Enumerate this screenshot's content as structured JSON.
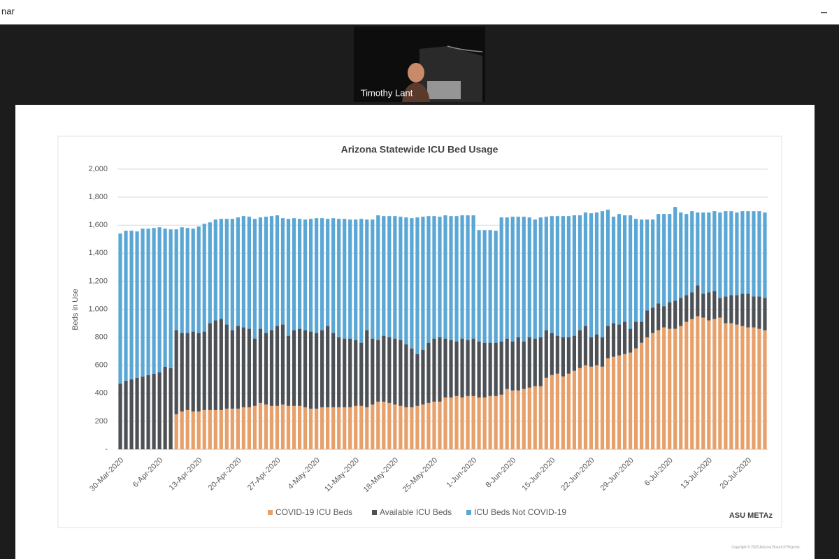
{
  "window": {
    "title": "nar"
  },
  "video": {
    "participant": "Timothy Lant"
  },
  "slide": {
    "copyright": "Copyright © 2020 Arizona Board of Regents."
  },
  "chart_data": {
    "type": "stacked_bar",
    "title": "Arizona Statewide ICU Bed Usage",
    "y_label": "Beds in Use",
    "source": "ASU METAz",
    "grid": true,
    "legend": "bottom",
    "ylim": [
      0,
      2000
    ],
    "yticks": [
      {
        "value": 0,
        "label": "-"
      },
      200,
      400,
      600,
      800,
      {
        "value": 1000,
        "label": "1,000"
      },
      {
        "value": 1200,
        "label": "1,200"
      },
      {
        "value": 1400,
        "label": "1,400"
      },
      {
        "value": 1600,
        "label": "1,600"
      },
      {
        "value": 1800,
        "label": "1,800"
      },
      {
        "value": 2000,
        "label": "2,000"
      }
    ],
    "categories": [
      "30-Mar-2020",
      null,
      null,
      null,
      null,
      null,
      null,
      "6-Apr-2020",
      null,
      null,
      null,
      null,
      null,
      null,
      "13-Apr-2020",
      null,
      null,
      null,
      null,
      null,
      null,
      "20-Apr-2020",
      null,
      null,
      null,
      null,
      null,
      null,
      "27-Apr-2020",
      null,
      null,
      null,
      null,
      null,
      null,
      "4-May-2020",
      null,
      null,
      null,
      null,
      null,
      null,
      "11-May-2020",
      null,
      null,
      null,
      null,
      null,
      null,
      "18-May-2020",
      null,
      null,
      null,
      null,
      null,
      null,
      "25-May-2020",
      null,
      null,
      null,
      null,
      null,
      null,
      "1-Jun-2020",
      null,
      null,
      null,
      null,
      null,
      null,
      "8-Jun-2020",
      null,
      null,
      null,
      null,
      null,
      null,
      "15-Jun-2020",
      null,
      null,
      null,
      null,
      null,
      null,
      "22-Jun-2020",
      null,
      null,
      null,
      null,
      null,
      null,
      "29-Jun-2020",
      null,
      null,
      null,
      null,
      null,
      null,
      "6-Jul-2020",
      null,
      null,
      null,
      null,
      null,
      null,
      "13-Jul-2020",
      null,
      null,
      null,
      null,
      null,
      null,
      "20-Jul-2020",
      null,
      null,
      null
    ],
    "series": [
      {
        "name": "COVID-19 ICU Beds",
        "color": "#e8a06a",
        "values": [
          0,
          0,
          0,
          0,
          0,
          0,
          0,
          0,
          0,
          0,
          250,
          270,
          280,
          270,
          270,
          280,
          280,
          280,
          280,
          290,
          290,
          290,
          300,
          300,
          310,
          330,
          320,
          310,
          310,
          320,
          310,
          310,
          310,
          300,
          290,
          290,
          300,
          300,
          300,
          300,
          300,
          300,
          310,
          310,
          300,
          320,
          340,
          340,
          330,
          320,
          310,
          300,
          300,
          310,
          320,
          330,
          340,
          340,
          370,
          370,
          380,
          370,
          380,
          380,
          370,
          370,
          380,
          380,
          390,
          430,
          420,
          420,
          430,
          440,
          450,
          450,
          510,
          530,
          540,
          520,
          540,
          560,
          580,
          600,
          590,
          600,
          590,
          650,
          660,
          670,
          680,
          690,
          720,
          760,
          800,
          830,
          850,
          870,
          860,
          860,
          880,
          910,
          930,
          950,
          940,
          920,
          930,
          940,
          900,
          900,
          890,
          880,
          870,
          870,
          860,
          850
        ]
      },
      {
        "name": "Available ICU Beds",
        "color": "#4d5055",
        "values": [
          470,
          490,
          500,
          510,
          520,
          530,
          540,
          550,
          590,
          580,
          600,
          560,
          550,
          570,
          560,
          560,
          620,
          640,
          650,
          600,
          560,
          590,
          570,
          560,
          480,
          530,
          510,
          540,
          570,
          570,
          500,
          540,
          550,
          550,
          550,
          540,
          550,
          580,
          530,
          500,
          490,
          490,
          470,
          450,
          550,
          470,
          440,
          470,
          470,
          470,
          470,
          450,
          420,
          370,
          390,
          430,
          450,
          460,
          420,
          410,
          390,
          420,
          400,
          410,
          400,
          390,
          380,
          380,
          380,
          360,
          350,
          380,
          340,
          360,
          340,
          350,
          340,
          300,
          270,
          280,
          260,
          250,
          270,
          280,
          210,
          220,
          210,
          230,
          240,
          220,
          230,
          170,
          190,
          150,
          190,
          180,
          190,
          150,
          190,
          200,
          200,
          190,
          190,
          220,
          170,
          200,
          200,
          140,
          190,
          200,
          210,
          230,
          240,
          220,
          230,
          230
        ]
      },
      {
        "name": "ICU Beds Not COVID-19",
        "color": "#5aa7d5",
        "values": [
          1070,
          1070,
          1060,
          1045,
          1055,
          1045,
          1040,
          1035,
          985,
          990,
          720,
          755,
          750,
          735,
          760,
          770,
          720,
          720,
          715,
          755,
          795,
          775,
          795,
          800,
          855,
          795,
          830,
          815,
          790,
          760,
          835,
          800,
          785,
          790,
          805,
          820,
          800,
          765,
          820,
          845,
          855,
          850,
          860,
          885,
          790,
          850,
          890,
          855,
          865,
          875,
          880,
          905,
          930,
          975,
          950,
          905,
          875,
          860,
          880,
          885,
          895,
          880,
          890,
          880,
          795,
          805,
          805,
          800,
          885,
          865,
          890,
          860,
          890,
          855,
          850,
          855,
          810,
          835,
          855,
          865,
          865,
          860,
          820,
          810,
          885,
          870,
          900,
          830,
          760,
          790,
          760,
          810,
          735,
          730,
          650,
          630,
          640,
          660,
          630,
          670,
          610,
          580,
          580,
          520,
          580,
          570,
          570,
          610,
          610,
          600,
          590,
          590,
          590,
          610,
          610,
          610
        ]
      }
    ]
  }
}
